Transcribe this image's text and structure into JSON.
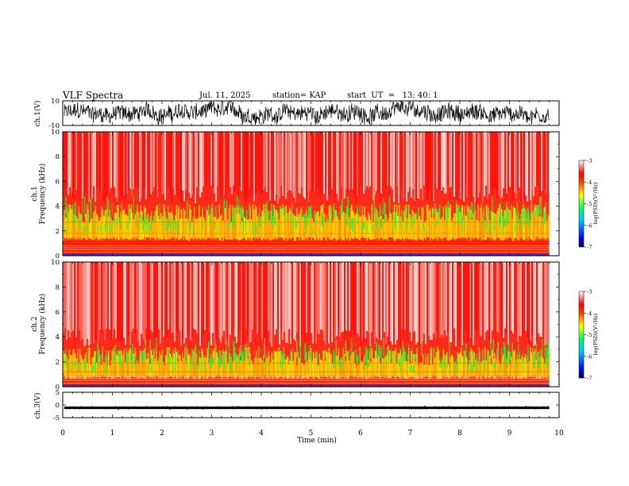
{
  "header": {
    "title": "VLF Spectra",
    "date": "Jul. 11, 2025",
    "station": "station= KAP",
    "start": "start  UT  =   13: 40: 1"
  },
  "chart_data": [
    {
      "type": "line",
      "panel": "ch1-waveform",
      "title": "",
      "ylabel": "ch.1(V)",
      "ylim": [
        -10,
        10
      ],
      "yticks": [
        "10",
        "-10"
      ],
      "xlim": [
        0,
        10
      ],
      "note": "dense noisy waveform spanning roughly -9 to +9 V over 0–9.8 min"
    },
    {
      "type": "heatmap",
      "panel": "ch1-spectrogram",
      "ylabel": "ch.1\nFrequency (kHz)",
      "ylim": [
        0,
        10
      ],
      "yticks": [
        "0",
        "2",
        "4",
        "6",
        "8",
        "10"
      ],
      "xlim": [
        0,
        9.8
      ],
      "colorbar": {
        "min": -7,
        "max": -3,
        "ticks": [
          "-3",
          "-4",
          "-5",
          "-6",
          "-7"
        ],
        "label": "log(PSD)(V²/Hz)"
      },
      "note": "red/white broadband above ~4 kHz, yellow/green band 1.5–4 kHz, horizontal lines near 0.3–0.8 and 2–4 kHz"
    },
    {
      "type": "heatmap",
      "panel": "ch2-spectrogram",
      "ylabel": "ch.2\nFrequency (kHz)",
      "ylim": [
        0,
        10
      ],
      "yticks": [
        "0",
        "2",
        "4",
        "6",
        "8",
        "10"
      ],
      "xlim": [
        0,
        9.8
      ],
      "colorbar": {
        "min": -7,
        "max": -3,
        "ticks": [
          "-3",
          "-4",
          "-5",
          "-6",
          "-7"
        ],
        "label": "log(PSD)(V²/Hz)"
      },
      "note": "lighter than ch.1; yellow/green band 0.8–3 kHz"
    },
    {
      "type": "line",
      "panel": "ch3-waveform",
      "ylabel": "ch.3(V)",
      "ylim": [
        -5,
        5
      ],
      "yticks": [
        "5",
        "0",
        "-5"
      ],
      "xlim": [
        0,
        10
      ],
      "note": "thick nearly flat band around -1 V"
    }
  ],
  "xaxis": {
    "label": "Time (min)",
    "ticks": [
      "0",
      "1",
      "2",
      "3",
      "4",
      "5",
      "6",
      "7",
      "8",
      "9",
      "10"
    ]
  }
}
